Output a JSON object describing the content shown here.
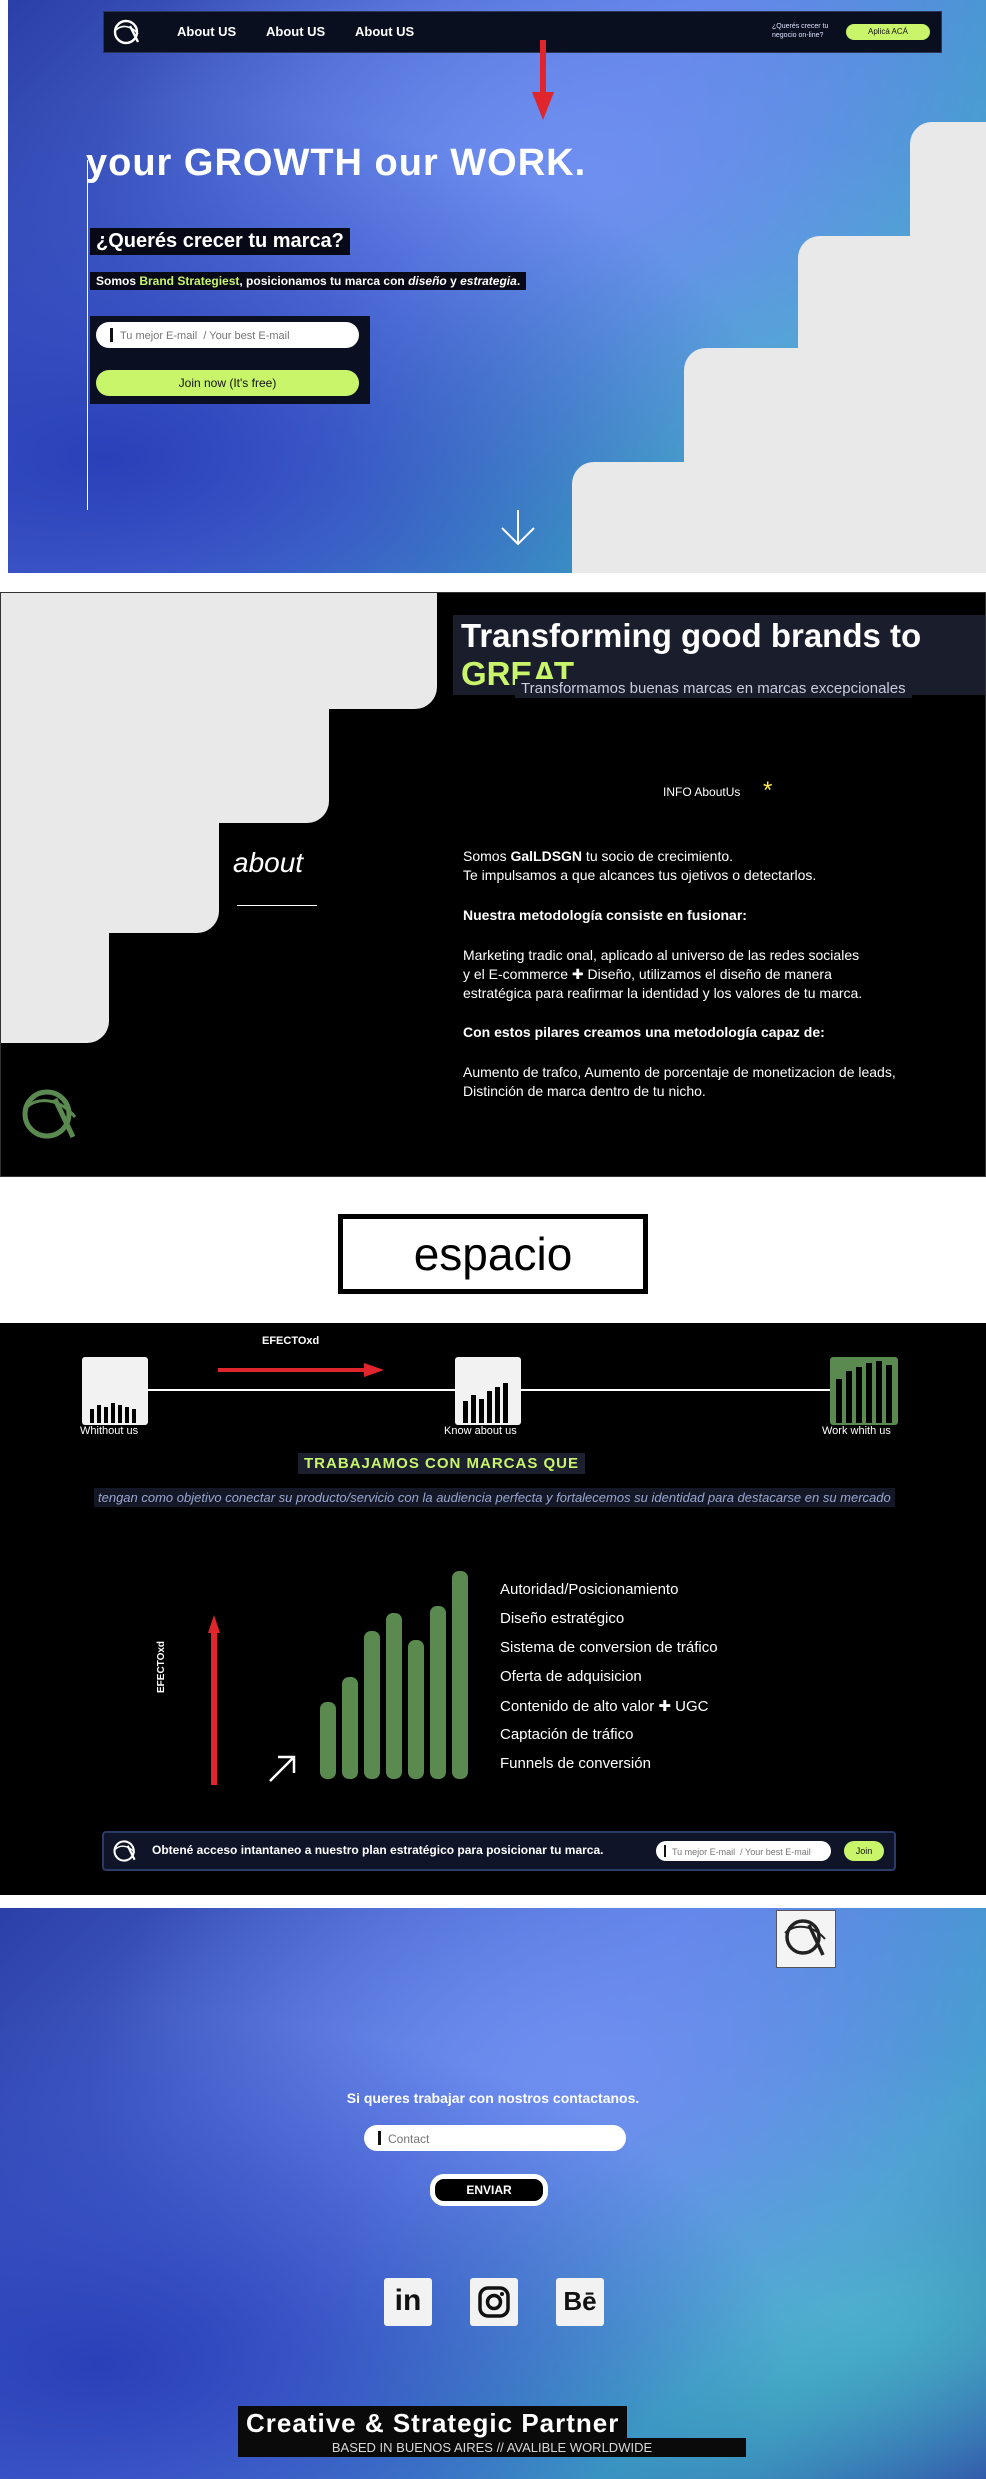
{
  "nav": {
    "links": [
      "About US",
      "About US",
      "About US"
    ],
    "cta_text": "¿Querés crecer tu negocio on-line?",
    "cta_button": "Aplicá ACÁ"
  },
  "hero": {
    "title": "your GROWTH our WORK.",
    "subtitle": "¿Querés crecer tu marca?",
    "desc_pre": "Somos ",
    "desc_highlight": "Brand Strategiest",
    "desc_mid": ", posicionamos tu marca con ",
    "desc_em1": "diseño",
    "desc_and": " y ",
    "desc_em2": "estrategia",
    "desc_end": ".",
    "email_placeholder": "Tu mejor E-mail  / Your best E-mail",
    "join_label": "Join now (It's free)"
  },
  "about": {
    "title_pre": "Transforming good brands to ",
    "title_great": "GREAT",
    "subtitle": "Transformamos buenas marcas en marcas excepcionales",
    "info_label": "INFO AboutUs",
    "star": "*",
    "about_word": "about",
    "p1_pre": "Somos ",
    "p1_brand": "GalLDSGN",
    "p1_post": " tu socio de crecimiento.",
    "p2": "Te impulsamos a que alcances tus ojetivos o detectarlos.",
    "h1": "Nuestra metodología consiste en fusionar:",
    "p3": "Marketing tradic onal, aplicado al universo de las redes sociales",
    "p4": "y el E-commerce ✚ Diseño, utilizamos el diseño de manera",
    "p5": "estratégica para reafirmar la identidad y los valores de tu marca.",
    "h2": "Con estos pilares creamos una metodología capaz de:",
    "p6": "Aumento de trafco, Aumento de porcentaje de monetizacion de leads,",
    "p7": "Distinción de marca dentro de tu nicho."
  },
  "espacio": "espacio",
  "section3": {
    "efecto_top": "EFECTOxd",
    "stages": [
      "Whithout us",
      "Know about us",
      "Work whith us"
    ],
    "heading": "TRABAJAMOS CON MARCAS QUE",
    "subheading": "tengan como objetivo conectar su  producto/servicio con la audiencia perfecta y fortalecemos su identidad para destacarse en su mercado",
    "efecto_side": "EFECTOxd",
    "bar_levels": [
      0.37,
      0.49,
      0.71,
      0.8,
      0.67,
      0.83,
      1.0
    ],
    "benefits": [
      "Autoridad/Posicionamiento",
      "Diseño estratégico",
      "Sistema de conversion de tráfico",
      "Oferta de adquisicion",
      "Contenido de alto valor ✚ UGC",
      "Captación de tráfico",
      "Funnels de conversión"
    ],
    "cta_text": "Obtené acceso intantaneo a nuestro plan estratégico para posicionar tu marca.",
    "cta_placeholder": "Tu mejor E-mail  / Your best E-mail",
    "cta_join": "Join"
  },
  "contact": {
    "heading": "Si queres trabajar con nostros contactanos.",
    "placeholder": "Contact",
    "send": "ENVIAR",
    "socials": [
      "linkedin-icon",
      "instagram-icon",
      "behance-icon"
    ],
    "social_labels": [
      "in",
      "Bē"
    ],
    "tagline": "Creative & Strategic Partner",
    "based": "BASED IN BUENOS AIRES // AVALIBLE WORLDWIDE"
  },
  "colors": {
    "accent": "#c9f56b",
    "dark": "#000000",
    "green_bar": "#5a8a4f",
    "red": "#e0262c"
  }
}
